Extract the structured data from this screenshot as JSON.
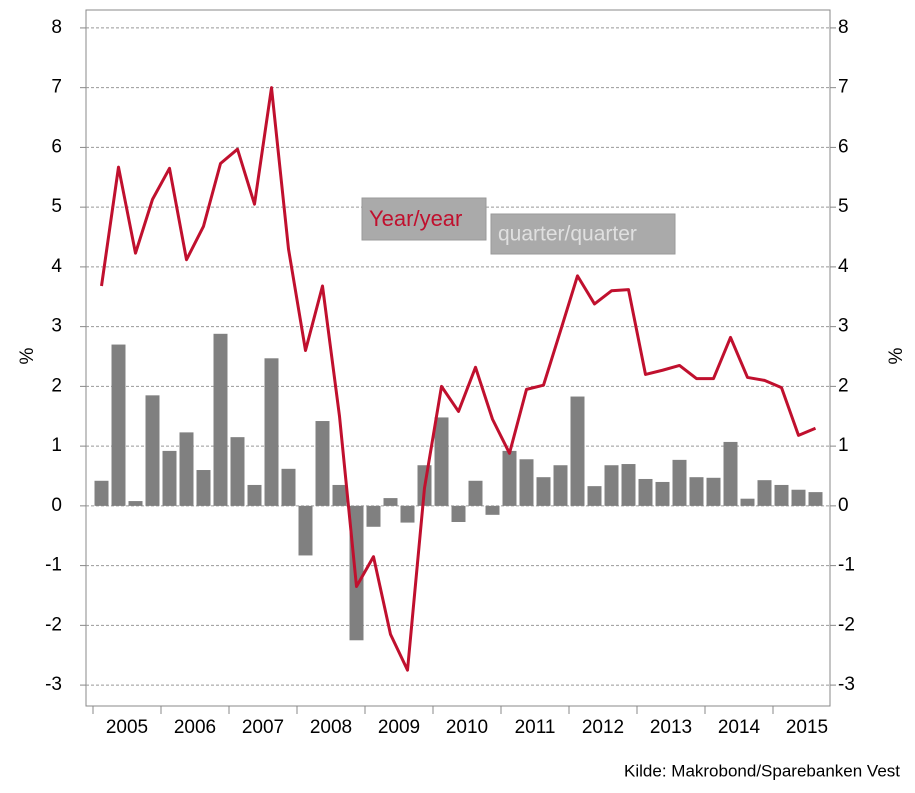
{
  "chart_data": {
    "type": "bar-line",
    "categories": [
      null,
      "2005",
      null,
      null,
      null,
      "2006",
      null,
      null,
      null,
      "2007",
      null,
      null,
      null,
      "2008",
      null,
      null,
      null,
      "2009",
      null,
      null,
      null,
      "2010",
      null,
      null,
      null,
      "2011",
      null,
      null,
      null,
      "2012",
      null,
      null,
      null,
      "2013",
      null,
      null,
      null,
      "2014",
      null,
      null,
      null,
      "2015",
      null
    ],
    "series": [
      {
        "name": "quarter/quarter",
        "type": "bar",
        "color": "#808080",
        "values": [
          0.42,
          2.7,
          0.08,
          1.85,
          0.92,
          1.23,
          0.6,
          2.88,
          1.15,
          0.35,
          2.47,
          0.62,
          -0.83,
          1.42,
          0.35,
          -2.25,
          -0.35,
          0.13,
          -0.28,
          0.68,
          1.48,
          -0.27,
          0.42,
          -0.15,
          0.92,
          0.78,
          0.48,
          0.68,
          1.83,
          0.33,
          0.68,
          0.7,
          0.45,
          0.4,
          0.77,
          0.48,
          0.47,
          1.07,
          0.12,
          0.43,
          0.35,
          0.27,
          0.23
        ]
      },
      {
        "name": "Year/year",
        "type": "line",
        "color": "#c0102e",
        "values": [
          3.68,
          5.67,
          4.23,
          5.13,
          5.65,
          4.12,
          4.68,
          5.73,
          5.97,
          5.05,
          7.0,
          4.3,
          2.6,
          3.68,
          1.5,
          -1.35,
          -0.85,
          -2.15,
          -2.75,
          0.3,
          2.0,
          1.58,
          2.32,
          1.45,
          0.88,
          1.95,
          2.02,
          2.93,
          3.85,
          3.38,
          3.6,
          3.62,
          2.2,
          2.27,
          2.35,
          2.13,
          2.13,
          2.82,
          2.15,
          2.1,
          1.98,
          1.18,
          1.3
        ]
      }
    ],
    "ylabel": "%",
    "y2label": "%",
    "ylim": [
      -3.35,
      8.3
    ],
    "yticks": [
      -3,
      -2,
      -1,
      0,
      1,
      2,
      3,
      4,
      5,
      6,
      7,
      8
    ],
    "grid": true,
    "source": "Kilde: Makrobond/Sparebanken Vest"
  }
}
